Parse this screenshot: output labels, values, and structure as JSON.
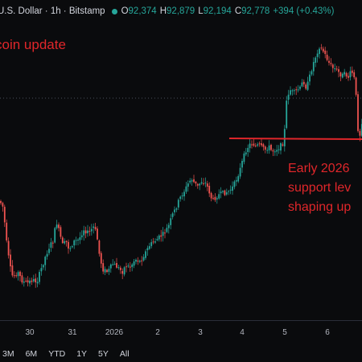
{
  "header": {
    "symbol": "U.S. Dollar · 1h · Bitstamp",
    "ohlc": [
      {
        "key": "O",
        "value": "92,374"
      },
      {
        "key": "H",
        "value": "92,879"
      },
      {
        "key": "L",
        "value": "92,194"
      },
      {
        "key": "C",
        "value": "92,778"
      }
    ],
    "change": "+394 (+0.43%)"
  },
  "annotations": {
    "title": "coin update",
    "support_note": [
      "Early 2026",
      "support lev",
      "shaping up"
    ]
  },
  "x_axis": {
    "labels": [
      "30",
      "31",
      "2026",
      "2",
      "3",
      "4",
      "5",
      "6"
    ]
  },
  "range_buttons": [
    "3M",
    "6M",
    "YTD",
    "1Y",
    "5Y",
    "All"
  ],
  "colors": {
    "background": "#0a0b0d",
    "up": "#26a69a",
    "down": "#ef5350",
    "annotation": "#e0262a",
    "text": "#d1d4dc"
  }
}
